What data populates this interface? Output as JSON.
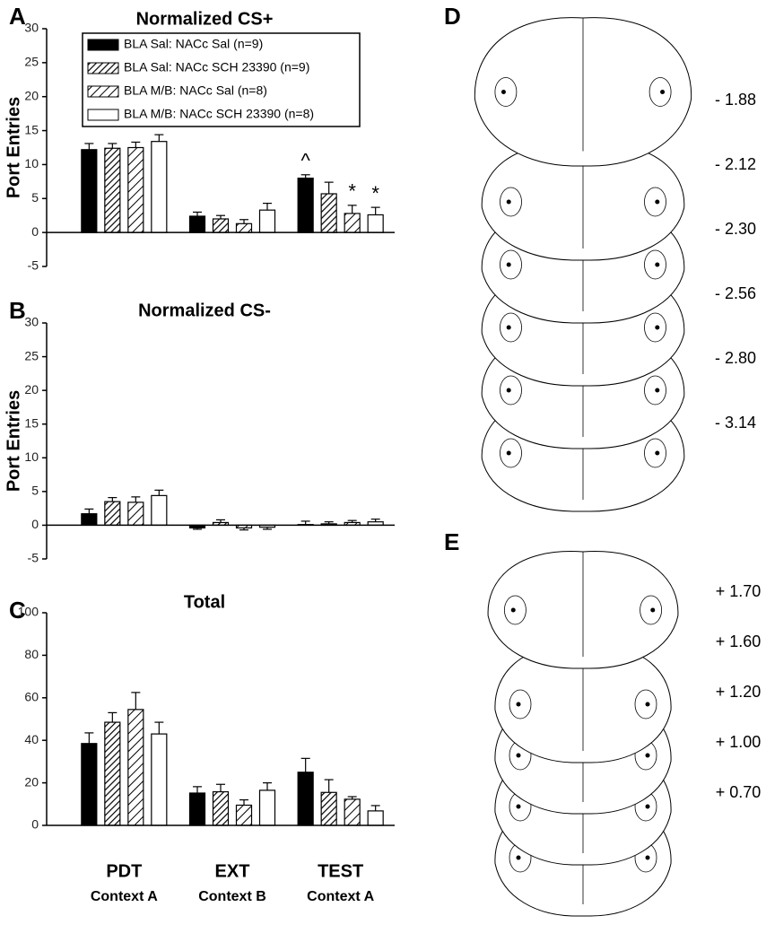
{
  "chart_data": [
    {
      "type": "bar",
      "panel_label": "A",
      "title": "Normalized CS+",
      "y_label": "Port Entries",
      "ylim": [
        -5,
        30
      ],
      "yticks": [
        -5,
        0,
        5,
        10,
        15,
        20,
        25,
        30
      ],
      "series": [
        {
          "name": "BLA Sal: NACc Sal (n=9)",
          "color": "#000000",
          "pattern": "solid",
          "values": [
            12.2,
            2.4,
            8.0
          ],
          "errors": [
            0.9,
            0.6,
            0.5
          ]
        },
        {
          "name": "BLA Sal: NACc SCH 23390 (n=9)",
          "color": "#ffffff",
          "pattern": "hatch",
          "values": [
            12.4,
            2.0,
            5.7
          ],
          "errors": [
            0.7,
            0.5,
            1.7
          ]
        },
        {
          "name": "BLA M/B: NACc Sal (n=8)",
          "color": "#ffffff",
          "pattern": "hatch-wide",
          "values": [
            12.5,
            1.3,
            2.8
          ],
          "errors": [
            0.8,
            0.6,
            1.2
          ]
        },
        {
          "name": "BLA M/B: NACc SCH 23390 (n=8)",
          "color": "#ffffff",
          "pattern": "none",
          "values": [
            13.4,
            3.3,
            2.6
          ],
          "errors": [
            1.0,
            1.0,
            1.1
          ]
        }
      ],
      "annotations": [
        {
          "text": "^",
          "series": 0,
          "category": 2
        },
        {
          "text": "*",
          "series": 2,
          "category": 2
        },
        {
          "text": "*",
          "series": 3,
          "category": 2
        }
      ]
    },
    {
      "type": "bar",
      "panel_label": "B",
      "title": "Normalized CS-",
      "y_label": "Port Entries",
      "ylim": [
        -5,
        30
      ],
      "yticks": [
        -5,
        0,
        5,
        10,
        15,
        20,
        25,
        30
      ],
      "series": [
        {
          "color": "#000000",
          "pattern": "solid",
          "values": [
            1.7,
            -0.4,
            0.1
          ],
          "errors": [
            0.7,
            0.2,
            0.5
          ]
        },
        {
          "color": "#ffffff",
          "pattern": "hatch",
          "values": [
            3.5,
            0.4,
            0.2
          ],
          "errors": [
            0.6,
            0.4,
            0.3
          ]
        },
        {
          "color": "#ffffff",
          "pattern": "hatch-wide",
          "values": [
            3.4,
            -0.4,
            0.4
          ],
          "errors": [
            0.8,
            0.3,
            0.3
          ]
        },
        {
          "color": "#ffffff",
          "pattern": "none",
          "values": [
            4.4,
            -0.3,
            0.5
          ],
          "errors": [
            0.8,
            0.3,
            0.4
          ]
        }
      ]
    },
    {
      "type": "bar",
      "panel_label": "C",
      "title": "Total",
      "categories": [
        "PDT",
        "EXT",
        "TEST"
      ],
      "category_sublabels": [
        "Context A",
        "Context B",
        "Context A"
      ],
      "ylim": [
        0,
        100
      ],
      "yticks": [
        0,
        20,
        40,
        60,
        80,
        100
      ],
      "series": [
        {
          "color": "#000000",
          "pattern": "solid",
          "values": [
            38.5,
            15.2,
            25.0
          ],
          "errors": [
            5.0,
            3.0,
            6.5
          ]
        },
        {
          "color": "#ffffff",
          "pattern": "hatch",
          "values": [
            48.5,
            15.8,
            15.5
          ],
          "errors": [
            4.5,
            3.5,
            6.0
          ]
        },
        {
          "color": "#ffffff",
          "pattern": "hatch-wide",
          "values": [
            54.5,
            9.5,
            12.3
          ],
          "errors": [
            8.0,
            2.5,
            1.2
          ]
        },
        {
          "color": "#ffffff",
          "pattern": "none",
          "values": [
            43.0,
            16.5,
            6.8
          ],
          "errors": [
            5.5,
            3.5,
            2.5
          ]
        }
      ]
    }
  ],
  "atlas": [
    {
      "panel_label": "D",
      "levels": [
        "- 1.88",
        "- 2.12",
        "- 2.30",
        "- 2.56",
        "- 2.80",
        "- 3.14"
      ]
    },
    {
      "panel_label": "E",
      "levels": [
        "+ 1.70",
        "+ 1.60",
        "+ 1.20",
        "+ 1.00",
        "+ 0.70"
      ]
    }
  ]
}
